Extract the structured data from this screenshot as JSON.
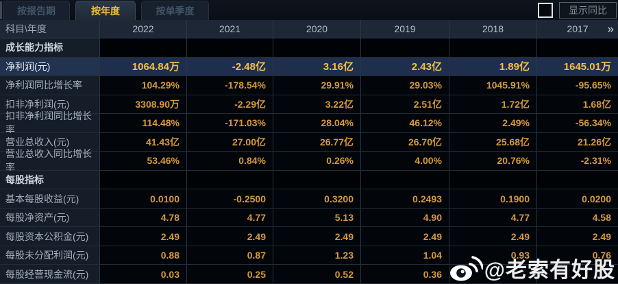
{
  "tabs": [
    {
      "label": "按报告期",
      "active": false
    },
    {
      "label": "按年度",
      "active": true
    },
    {
      "label": "按单季度",
      "active": false
    }
  ],
  "toolbar": {
    "show_yoy_label": "显示同比",
    "checkbox_checked": false
  },
  "table": {
    "corner_header": "科目\\年度",
    "year_columns": [
      "2022",
      "2021",
      "2020",
      "2019",
      "2018",
      "2017"
    ],
    "more_columns_icon": "»",
    "rows": [
      {
        "type": "section",
        "label": "成长能力指标",
        "highlighted": false,
        "values": [
          "",
          "",
          "",
          "",
          "",
          ""
        ]
      },
      {
        "type": "data",
        "label": "净利润(元)",
        "highlighted": true,
        "values": [
          "1064.84万",
          "-2.48亿",
          "3.16亿",
          "2.43亿",
          "1.89亿",
          "1645.01万"
        ]
      },
      {
        "type": "data",
        "label": "净利润同比增长率",
        "highlighted": false,
        "values": [
          "104.29%",
          "-178.54%",
          "29.91%",
          "29.03%",
          "1045.91%",
          "-95.65%"
        ]
      },
      {
        "type": "data",
        "label": "扣非净利润(元)",
        "highlighted": false,
        "values": [
          "3308.90万",
          "-2.29亿",
          "3.22亿",
          "2.51亿",
          "1.72亿",
          "1.68亿"
        ]
      },
      {
        "type": "data",
        "label": "扣非净利润同比增长率",
        "highlighted": false,
        "values": [
          "114.48%",
          "-171.03%",
          "28.04%",
          "46.12%",
          "2.49%",
          "-56.34%"
        ]
      },
      {
        "type": "data",
        "label": "营业总收入(元)",
        "highlighted": false,
        "values": [
          "41.43亿",
          "27.00亿",
          "26.77亿",
          "26.70亿",
          "25.68亿",
          "21.26亿"
        ]
      },
      {
        "type": "data",
        "label": "营业总收入同比增长率",
        "highlighted": false,
        "values": [
          "53.46%",
          "0.84%",
          "0.26%",
          "4.00%",
          "20.76%",
          "-2.31%"
        ]
      },
      {
        "type": "section",
        "label": "每股指标",
        "highlighted": false,
        "values": [
          "",
          "",
          "",
          "",
          "",
          ""
        ]
      },
      {
        "type": "data",
        "label": "基本每股收益(元)",
        "highlighted": false,
        "values": [
          "0.0100",
          "-0.2500",
          "0.3200",
          "0.2493",
          "0.1900",
          "0.0200"
        ]
      },
      {
        "type": "data",
        "label": "每股净资产(元)",
        "highlighted": false,
        "values": [
          "4.78",
          "4.77",
          "5.13",
          "4.90",
          "4.77",
          "4.58"
        ]
      },
      {
        "type": "data",
        "label": "每股资本公积金(元)",
        "highlighted": false,
        "values": [
          "2.49",
          "2.49",
          "2.49",
          "2.49",
          "2.49",
          "2.49"
        ]
      },
      {
        "type": "data",
        "label": "每股未分配利润(元)",
        "highlighted": false,
        "values": [
          "0.88",
          "0.87",
          "1.23",
          "1.04",
          "0.93",
          "0.76"
        ]
      },
      {
        "type": "data",
        "label": "每股经营现金流(元)",
        "highlighted": false,
        "values": [
          "0.03",
          "0.25",
          "0.52",
          "0.36",
          "",
          ""
        ]
      }
    ]
  },
  "watermark": {
    "text": "@老索有好股",
    "icon": "weibo-icon"
  },
  "colors": {
    "accent_gold": "#f2c133",
    "value_orange": "#d69a3c",
    "highlight_row_bg": "#1e2e4d",
    "header_bg": "#1d2735",
    "label_cell_bg": "#141d28",
    "data_cell_bg": "#02060b"
  }
}
